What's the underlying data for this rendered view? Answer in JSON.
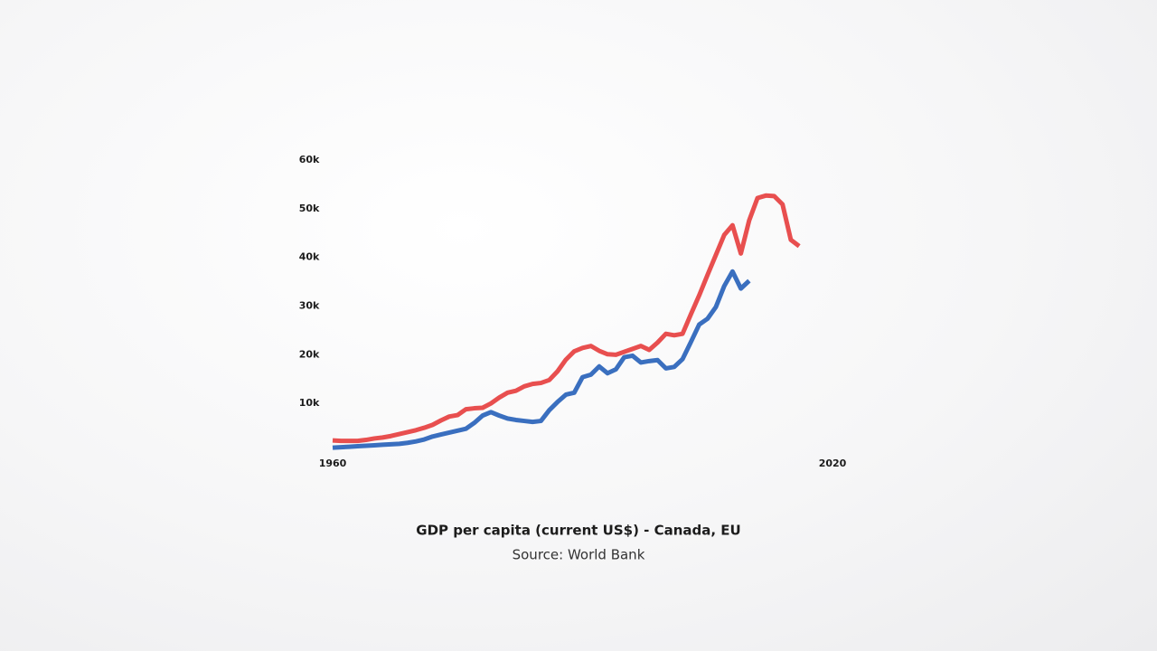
{
  "chart_data": {
    "type": "line",
    "title": "GDP per capita (current US$) - Canada, EU",
    "subtitle": "Source: World Bank",
    "x": [
      1960,
      1961,
      1962,
      1963,
      1964,
      1965,
      1966,
      1967,
      1968,
      1969,
      1970,
      1971,
      1972,
      1973,
      1974,
      1975,
      1976,
      1977,
      1978,
      1979,
      1980,
      1981,
      1982,
      1983,
      1984,
      1985,
      1986,
      1987,
      1988,
      1989,
      1990,
      1991,
      1992,
      1993,
      1994,
      1995,
      1996,
      1997,
      1998,
      1999,
      2000,
      2001,
      2002,
      2003,
      2004,
      2005,
      2006,
      2007,
      2008,
      2009,
      2010,
      2011,
      2012,
      2013,
      2014,
      2015,
      2016
    ],
    "series": [
      {
        "color": "#e84f4f",
        "values": [
          2400,
          2300,
          2300,
          2300,
          2500,
          2800,
          3000,
          3300,
          3700,
          4100,
          4500,
          5000,
          5600,
          6500,
          7300,
          7600,
          8800,
          9000,
          9100,
          10000,
          11200,
          12200,
          12600,
          13500,
          14000,
          14200,
          14800,
          16600,
          19000,
          20700,
          21400,
          21800,
          20800,
          20100,
          20000,
          20600,
          21200,
          21800,
          21000,
          22500,
          24300,
          24000,
          24300,
          28300,
          32200,
          36400,
          40500,
          44600,
          46600,
          40800,
          47600,
          52200,
          52700,
          52600,
          50900,
          43600,
          42300
        ]
      },
      {
        "color": "#3a6fbf",
        "values": [
          900,
          1000,
          1100,
          1200,
          1300,
          1400,
          1500,
          1600,
          1700,
          1900,
          2200,
          2600,
          3200,
          3600,
          4000,
          4400,
          4800,
          6000,
          7500,
          8200,
          7500,
          6900,
          6600,
          6400,
          6200,
          6400,
          8600,
          10300,
          11800,
          12200,
          15400,
          15900,
          17600,
          16200,
          17000,
          19500,
          19800,
          18400,
          18700,
          18900,
          17200,
          17500,
          19100,
          22600,
          26200,
          27400,
          29800,
          34100,
          37100,
          33600,
          35200,
          null,
          null,
          null,
          null,
          null,
          null
        ]
      }
    ],
    "xlim": [
      1960,
      2020
    ],
    "xticks": [
      1960,
      2020
    ],
    "ylim": [
      0,
      60000
    ],
    "yticks": [
      {
        "value": 10000,
        "label": "10k"
      },
      {
        "value": 20000,
        "label": "20k"
      },
      {
        "value": 30000,
        "label": "30k"
      },
      {
        "value": 40000,
        "label": "40k"
      },
      {
        "value": 50000,
        "label": "50k"
      },
      {
        "value": 60000,
        "label": "60k"
      }
    ],
    "grid": false
  }
}
